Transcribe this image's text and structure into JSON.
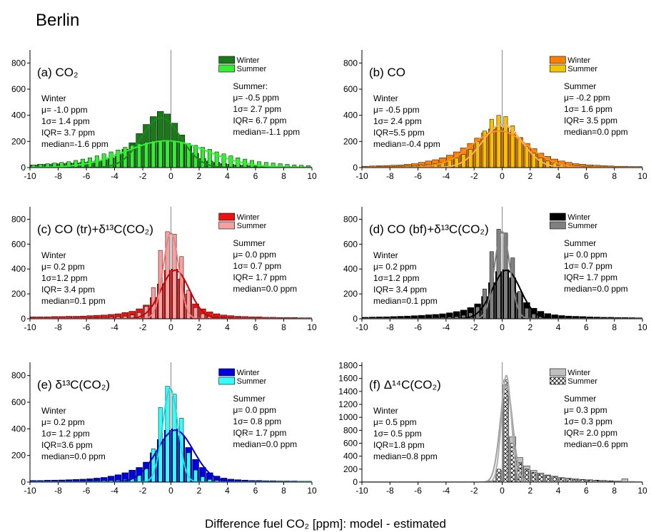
{
  "title": "Berlin",
  "xlabel": "Difference fuel CO₂ [ppm]:  model - estimated",
  "chart_data": [
    {
      "type": "histogram",
      "title": "(a) CO₂",
      "xlim": [
        -10,
        10
      ],
      "ylim": [
        0,
        900
      ],
      "xticks": [
        -10,
        -8,
        -6,
        -4,
        -2,
        0,
        2,
        4,
        6,
        8,
        10
      ],
      "yticks": [
        0,
        200,
        400,
        600,
        800
      ],
      "vline": 0,
      "legend": "upper right",
      "bins": [
        -10,
        -9.5,
        -9,
        -8.5,
        -8,
        -7.5,
        -7,
        -6.5,
        -6,
        -5.5,
        -5,
        -4.5,
        -4,
        -3.5,
        -3,
        -2.5,
        -2,
        -1.5,
        -1,
        -0.5,
        0,
        0.5,
        1,
        1.5,
        2,
        2.5,
        3,
        3.5,
        4,
        4.5,
        5,
        5.5,
        6,
        6.5,
        7,
        7.5,
        8,
        8.5,
        9,
        9.5,
        10
      ],
      "series": [
        {
          "name": "Winter",
          "color": "#1a7a1a",
          "values": [
            20,
            25,
            25,
            30,
            30,
            35,
            35,
            40,
            45,
            50,
            60,
            75,
            100,
            140,
            190,
            260,
            330,
            390,
            430,
            410,
            340,
            250,
            170,
            110,
            70,
            50,
            40,
            30,
            25,
            20,
            18,
            15,
            12,
            10,
            10,
            8,
            8,
            6,
            6,
            5
          ],
          "fit": {
            "mu": -0.7,
            "sigma": 1.4,
            "peak": 380,
            "color": "#1a8a1a"
          },
          "stats": [
            "Winter",
            "μ= -1.0 ppm",
            "1σ= 1.4 ppm",
            "IQR= 3.7 ppm",
            "median=-1.6 ppm"
          ]
        },
        {
          "name": "Summer",
          "color": "#33ee33",
          "values": [
            20,
            25,
            30,
            35,
            40,
            45,
            55,
            65,
            75,
            90,
            105,
            120,
            135,
            155,
            170,
            185,
            195,
            205,
            210,
            210,
            205,
            195,
            185,
            170,
            155,
            140,
            120,
            105,
            90,
            75,
            65,
            55,
            45,
            40,
            35,
            30,
            25,
            20,
            18,
            15
          ],
          "fit": {
            "mu": -0.3,
            "sigma": 2.9,
            "peak": 205,
            "color": "#33ee33"
          },
          "stats": [
            "Summer:",
            "μ= -0.5 ppm",
            "1σ= 2.7 ppm",
            "IQR= 6.7 ppm",
            "median=-1.1 ppm"
          ]
        }
      ]
    },
    {
      "type": "histogram",
      "title": "(b) CO",
      "xlim": [
        -10,
        10
      ],
      "ylim": [
        0,
        900
      ],
      "xticks": [
        -10,
        -8,
        -6,
        -4,
        -2,
        0,
        2,
        4,
        6,
        8,
        10
      ],
      "yticks": [
        0,
        200,
        400,
        600,
        800
      ],
      "vline": 0,
      "legend": "upper right",
      "bins": [
        -10,
        -9.5,
        -9,
        -8.5,
        -8,
        -7.5,
        -7,
        -6.5,
        -6,
        -5.5,
        -5,
        -4.5,
        -4,
        -3.5,
        -3,
        -2.5,
        -2,
        -1.5,
        -1,
        -0.5,
        0,
        0.5,
        1,
        1.5,
        2,
        2.5,
        3,
        3.5,
        4,
        4.5,
        5,
        5.5,
        6,
        6.5,
        7,
        7.5,
        8,
        8.5,
        9,
        9.5,
        10
      ],
      "series": [
        {
          "name": "Winter",
          "color": "#ff8000",
          "values": [
            10,
            12,
            14,
            16,
            18,
            20,
            25,
            30,
            40,
            50,
            60,
            75,
            95,
            120,
            150,
            185,
            225,
            265,
            295,
            310,
            300,
            270,
            230,
            185,
            145,
            110,
            85,
            65,
            50,
            40,
            30,
            25,
            20,
            18,
            15,
            12,
            10,
            10,
            8,
            8
          ],
          "fit": {
            "mu": -0.2,
            "sigma": 2.0,
            "peak": 280,
            "color": "#ff9020"
          },
          "stats": [
            "Winter",
            "μ= -0.5 ppm",
            "1σ= 2.4 ppm",
            "IQR=5.5 ppm",
            "median=-0.4 ppm"
          ]
        },
        {
          "name": "Summer",
          "color": "#f5c400",
          "values": [
            5,
            5,
            6,
            6,
            8,
            10,
            12,
            15,
            18,
            22,
            30,
            40,
            55,
            75,
            100,
            140,
            200,
            280,
            370,
            400,
            390,
            320,
            230,
            160,
            110,
            75,
            50,
            35,
            25,
            18,
            14,
            10,
            8,
            6,
            5,
            5,
            4,
            4,
            3,
            3
          ],
          "fit": {
            "mu": 0,
            "sigma": 1.4,
            "peak": 330,
            "color": "#ffb060"
          },
          "stats": [
            "Summer",
            "μ= -0.2 ppm",
            "1σ= 1.6 ppm",
            "IQR= 3.5 ppm",
            "median=0.0 ppm"
          ]
        }
      ]
    },
    {
      "type": "histogram",
      "title": "(c) CO (tr)+δ¹³C(CO₂)",
      "xlim": [
        -10,
        10
      ],
      "ylim": [
        0,
        900
      ],
      "xticks": [
        -10,
        -8,
        -6,
        -4,
        -2,
        0,
        2,
        4,
        6,
        8,
        10
      ],
      "yticks": [
        0,
        200,
        400,
        600,
        800
      ],
      "vline": 0,
      "legend": "upper right",
      "bins": [
        -10,
        -9.5,
        -9,
        -8.5,
        -8,
        -7.5,
        -7,
        -6.5,
        -6,
        -5.5,
        -5,
        -4.5,
        -4,
        -3.5,
        -3,
        -2.5,
        -2,
        -1.5,
        -1,
        -0.5,
        0,
        0.5,
        1,
        1.5,
        2,
        2.5,
        3,
        3.5,
        4,
        4.5,
        5,
        5.5,
        6,
        6.5,
        7,
        7.5,
        8,
        8.5,
        9,
        9.5,
        10
      ],
      "series": [
        {
          "name": "Winter",
          "color": "#ee1111",
          "values": [
            15,
            15,
            15,
            18,
            18,
            20,
            20,
            22,
            25,
            28,
            30,
            35,
            40,
            50,
            60,
            80,
            110,
            170,
            280,
            390,
            400,
            320,
            200,
            120,
            80,
            55,
            40,
            30,
            25,
            20,
            18,
            15,
            15,
            12,
            12,
            10,
            10,
            10,
            8,
            8
          ],
          "fit": {
            "mu": 0.3,
            "sigma": 1.0,
            "peak": 390,
            "color": "#cc0000"
          },
          "stats": [
            "Winter",
            "μ= 0.2 ppm",
            "1σ=1.2 ppm",
            "IQR= 3.4 ppm",
            "median=0.1 ppm"
          ]
        },
        {
          "name": "Summer",
          "color": "#f8a0a0",
          "values": [
            3,
            3,
            3,
            3,
            4,
            4,
            5,
            5,
            6,
            8,
            10,
            12,
            15,
            20,
            30,
            50,
            100,
            250,
            550,
            700,
            680,
            500,
            230,
            90,
            40,
            20,
            12,
            8,
            6,
            5,
            4,
            4,
            3,
            3,
            3,
            2,
            2,
            2,
            2,
            2
          ],
          "fit": {
            "mu": 0,
            "sigma": 0.55,
            "peak": 690,
            "color": "#f08080"
          },
          "stats": [
            "Summer",
            "μ= 0.0 ppm",
            "1σ= 0.7 ppm",
            "IQR= 1.7 ppm",
            "median=0.0 ppm"
          ]
        }
      ]
    },
    {
      "type": "histogram",
      "title": "(d) CO (bf)+δ¹³C(CO₂)",
      "xlim": [
        -10,
        10
      ],
      "ylim": [
        0,
        900
      ],
      "xticks": [
        -10,
        -8,
        -6,
        -4,
        -2,
        0,
        2,
        4,
        6,
        8,
        10
      ],
      "yticks": [
        0,
        200,
        400,
        600,
        800
      ],
      "vline": 0,
      "legend": "upper right",
      "bins": [
        -10,
        -9.5,
        -9,
        -8.5,
        -8,
        -7.5,
        -7,
        -6.5,
        -6,
        -5.5,
        -5,
        -4.5,
        -4,
        -3.5,
        -3,
        -2.5,
        -2,
        -1.5,
        -1,
        -0.5,
        0,
        0.5,
        1,
        1.5,
        2,
        2.5,
        3,
        3.5,
        4,
        4.5,
        5,
        5.5,
        6,
        6.5,
        7,
        7.5,
        8,
        8.5,
        9,
        9.5,
        10
      ],
      "series": [
        {
          "name": "Winter",
          "color": "#000000",
          "values": [
            12,
            14,
            15,
            16,
            18,
            20,
            22,
            25,
            28,
            32,
            35,
            40,
            48,
            58,
            70,
            90,
            120,
            180,
            290,
            380,
            395,
            330,
            210,
            130,
            85,
            60,
            42,
            32,
            26,
            22,
            20,
            18,
            15,
            14,
            12,
            12,
            10,
            10,
            9,
            8
          ],
          "fit": {
            "mu": 0.3,
            "sigma": 1.0,
            "peak": 390,
            "color": "#000000"
          },
          "stats": [
            "Winter",
            "μ= 0.2 ppm",
            "1σ=1.2 ppm",
            "IQR= 3.4 ppm",
            "median=0.1 ppm"
          ]
        },
        {
          "name": "Summer",
          "color": "#808080",
          "values": [
            2,
            2,
            3,
            3,
            3,
            4,
            4,
            5,
            6,
            7,
            9,
            11,
            14,
            18,
            28,
            48,
            95,
            240,
            540,
            720,
            690,
            490,
            220,
            85,
            38,
            18,
            11,
            8,
            6,
            5,
            4,
            3,
            3,
            3,
            2,
            2,
            2,
            2,
            2,
            2
          ],
          "fit": {
            "mu": 0,
            "sigma": 0.55,
            "peak": 700,
            "color": "#808080"
          },
          "stats": [
            "Summer",
            "μ= 0.0 ppm",
            "1σ= 0.7 ppm",
            "IQR= 1.7 ppm",
            "median=0.0 ppm"
          ]
        }
      ]
    },
    {
      "type": "histogram",
      "title": "(e) δ¹³C(CO₂)",
      "xlim": [
        -10,
        10
      ],
      "ylim": [
        0,
        900
      ],
      "xticks": [
        -10,
        -8,
        -6,
        -4,
        -2,
        0,
        2,
        4,
        6,
        8,
        10
      ],
      "yticks": [
        0,
        200,
        400,
        600,
        800
      ],
      "vline": 0,
      "legend": "upper right",
      "bins": [
        -10,
        -9.5,
        -9,
        -8.5,
        -8,
        -7.5,
        -7,
        -6.5,
        -6,
        -5.5,
        -5,
        -4.5,
        -4,
        -3.5,
        -3,
        -2.5,
        -2,
        -1.5,
        -1,
        -0.5,
        0,
        0.5,
        1,
        1.5,
        2,
        2.5,
        3,
        3.5,
        4,
        4.5,
        5,
        5.5,
        6,
        6.5,
        7,
        7.5,
        8,
        8.5,
        9,
        9.5,
        10
      ],
      "series": [
        {
          "name": "Winter",
          "color": "#0000dd",
          "values": [
            12,
            12,
            14,
            15,
            16,
            18,
            20,
            22,
            25,
            30,
            35,
            45,
            55,
            70,
            90,
            110,
            150,
            220,
            320,
            390,
            400,
            350,
            260,
            170,
            110,
            70,
            45,
            30,
            22,
            18,
            15,
            12,
            12,
            10,
            10,
            8,
            8,
            8,
            6,
            6
          ],
          "fit": {
            "mu": 0.3,
            "sigma": 1.3,
            "peak": 390,
            "color": "#0000cc"
          },
          "stats": [
            "Winter",
            "μ= 0.2 ppm",
            "1σ= 1.2 ppm",
            "IQR=3.6 ppm",
            "median=0.0 ppm"
          ]
        },
        {
          "name": "Summer",
          "color": "#33ffff",
          "values": [
            3,
            3,
            3,
            4,
            4,
            5,
            5,
            6,
            7,
            8,
            10,
            12,
            15,
            20,
            30,
            50,
            100,
            250,
            560,
            720,
            660,
            480,
            220,
            90,
            40,
            20,
            12,
            8,
            6,
            5,
            4,
            4,
            3,
            3,
            3,
            2,
            2,
            2,
            2,
            2
          ],
          "fit": {
            "mu": -0.05,
            "sigma": 0.55,
            "peak": 700,
            "color": "#22dddd"
          },
          "stats": [
            "Summer",
            "μ= 0.0 ppm",
            "1σ= 0.8 ppm",
            "IQR= 1.7 ppm",
            "median=0.0 ppm"
          ]
        }
      ]
    },
    {
      "type": "histogram",
      "title": "(f) Δ¹⁴C(CO₂)",
      "xlim": [
        -10,
        10
      ],
      "ylim": [
        0,
        1850
      ],
      "xticks": [
        -10,
        -8,
        -6,
        -4,
        -2,
        0,
        2,
        4,
        6,
        8,
        10
      ],
      "yticks": [
        0,
        200,
        400,
        600,
        800,
        1000,
        1200,
        1400,
        1600,
        1800
      ],
      "vline": 0,
      "legend": "upper right",
      "bins": [
        -10,
        -9.5,
        -9,
        -8.5,
        -8,
        -7.5,
        -7,
        -6.5,
        -6,
        -5.5,
        -5,
        -4.5,
        -4,
        -3.5,
        -3,
        -2.5,
        -2,
        -1.5,
        -1,
        -0.5,
        0,
        0.5,
        1,
        1.5,
        2,
        2.5,
        3,
        3.5,
        4,
        4.5,
        5,
        5.5,
        6,
        6.5,
        7,
        7.5,
        8,
        8.5,
        9,
        9.5,
        10
      ],
      "series": [
        {
          "name": "Winter",
          "color": "#c0c0c0",
          "values": [
            0,
            0,
            0,
            0,
            0,
            0,
            0,
            0,
            0,
            0,
            0,
            0,
            0,
            0,
            0,
            0,
            0,
            5,
            20,
            180,
            1500,
            700,
            380,
            250,
            180,
            140,
            110,
            90,
            70,
            60,
            50,
            40,
            35,
            30,
            25,
            20,
            15,
            50,
            10,
            8
          ],
          "fit": {
            "mu": 0.3,
            "sigma": 0.45,
            "peak": 1500,
            "color": "#a0a0a0"
          },
          "stats": [
            "Winter",
            "μ= 0.5 ppm",
            "1σ= 0.5 ppm",
            "IQR=1.8 ppm",
            "median=0.8 ppm"
          ]
        },
        {
          "name": "Summer",
          "color": "#000000",
          "hatch": true,
          "values": [
            0,
            0,
            0,
            0,
            0,
            0,
            0,
            0,
            0,
            0,
            0,
            0,
            0,
            0,
            0,
            0,
            0,
            3,
            15,
            200,
            1580,
            600,
            300,
            200,
            150,
            120,
            100,
            80,
            60,
            50,
            40,
            35,
            30,
            25,
            20,
            15,
            10,
            8,
            6,
            5
          ],
          "fit": {
            "mu": 0.3,
            "sigma": 0.35,
            "peak": 1650,
            "color": "#b0b0b0"
          },
          "stats": [
            "Summer",
            "μ= 0.3 ppm",
            "1σ= 0.3 ppm",
            "IQR= 2.0 ppm",
            "median=0.6 ppm"
          ]
        }
      ]
    }
  ]
}
